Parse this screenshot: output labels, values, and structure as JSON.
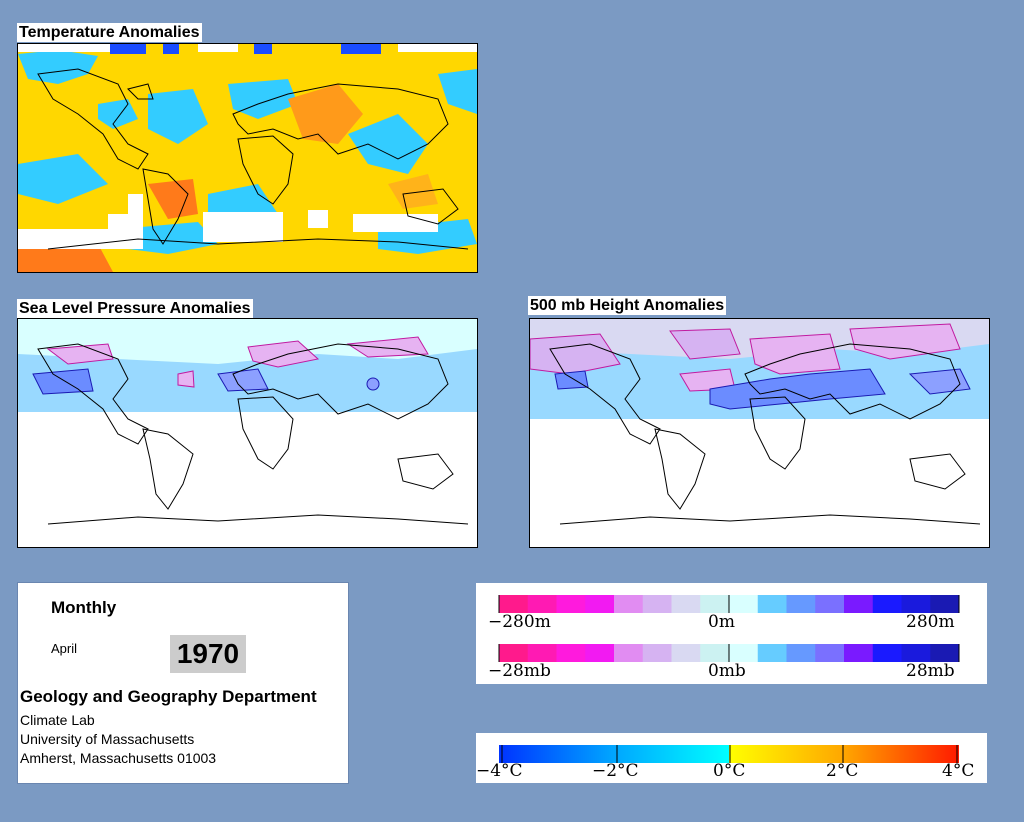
{
  "panels": {
    "temperature": {
      "title": "Temperature Anomalies"
    },
    "slp": {
      "title": "Sea Level Pressure Anomalies"
    },
    "height": {
      "title": "500 mb Height Anomalies"
    }
  },
  "info": {
    "period": "Monthly",
    "month": "April",
    "year": "1970",
    "department": "Geology and Geography Department",
    "lab": "Climate Lab",
    "university": "University of Massachusetts",
    "address": "Amherst, Massachusetts 01003"
  },
  "legends": {
    "height": {
      "left": "−280m",
      "center": "0m",
      "right": "280m"
    },
    "pressure": {
      "left": "−28mb",
      "center": "0mb",
      "right": "28mb"
    },
    "temperature": {
      "t1": "−4°C",
      "t2": "−2°C",
      "t3": "0°C",
      "t4": "2°C",
      "t5": "4°C"
    }
  },
  "colors": {
    "background": "#7b9ac3",
    "anomaly_scale": [
      "#ff1a8c",
      "#ff1ab3",
      "#ff1add",
      "#f21af2",
      "#e18cf2",
      "#d6b3f2",
      "#d9d9f2",
      "#ccf2f2",
      "#d9ffff",
      "#66ccff",
      "#6699ff",
      "#7a70ff",
      "#7a1aff",
      "#1a1aff",
      "#1a1add",
      "#1a1ab3"
    ],
    "temperature_scale": [
      "#0033ff",
      "#0073ff",
      "#00a6ff",
      "#00d9ff",
      "#00ffff",
      "#ffff00",
      "#ffd900",
      "#ffa600",
      "#ff7300",
      "#ff3300",
      "#ff0000"
    ]
  }
}
